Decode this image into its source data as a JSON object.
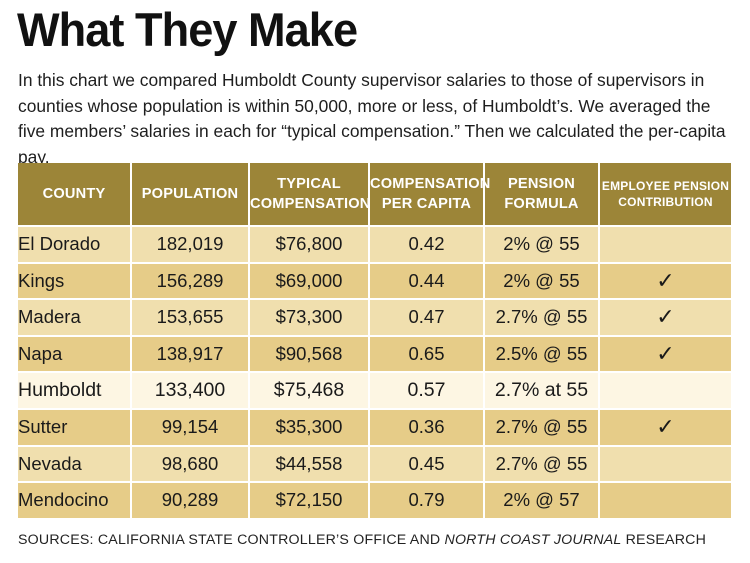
{
  "title": "What They Make",
  "intro": "In this chart we compared Humboldt County supervisor salaries to those of supervisors in counties whose population is within 50,000, more or less, of Humboldt’s. We averaged the five members’ salaries in each for “typical compensation.” Then we calculated the per-capita pay.",
  "colors": {
    "header_bg": "#9c8538",
    "row_light": "#f0dfae",
    "row_dark": "#e6cc88",
    "row_highlight": "#fdf6e3"
  },
  "chart_data": {
    "type": "table",
    "columns": [
      "County",
      "Population",
      "Typical Compensation",
      "Compensation Per Capita",
      "Pension Formula",
      "Employee Pension Contribution"
    ],
    "rows": [
      {
        "county": "El Dorado",
        "population": "182,019",
        "compensation": "$76,800",
        "per_capita": "0.42",
        "pension": "2% @ 55",
        "contribution": ""
      },
      {
        "county": "Kings",
        "population": "156,289",
        "compensation": "$69,000",
        "per_capita": "0.44",
        "pension": "2% @ 55",
        "contribution": "✓"
      },
      {
        "county": "Madera",
        "population": "153,655",
        "compensation": "$73,300",
        "per_capita": "0.47",
        "pension": "2.7% @ 55",
        "contribution": "✓"
      },
      {
        "county": "Napa",
        "population": "138,917",
        "compensation": "$90,568",
        "per_capita": "0.65",
        "pension": "2.5% @ 55",
        "contribution": "✓"
      },
      {
        "county": "Humboldt",
        "population": "133,400",
        "compensation": "$75,468",
        "per_capita": "0.57",
        "pension": "2.7% at 55",
        "contribution": ""
      },
      {
        "county": "Sutter",
        "population": "99,154",
        "compensation": "$35,300",
        "per_capita": "0.36",
        "pension": "2.7% @ 55",
        "contribution": "✓"
      },
      {
        "county": "Nevada",
        "population": "98,680",
        "compensation": "$44,558",
        "per_capita": "0.45",
        "pension": "2.7% @ 55",
        "contribution": ""
      },
      {
        "county": "Mendocino",
        "population": "90,289",
        "compensation": "$72,150",
        "per_capita": "0.79",
        "pension": "2% @ 57",
        "contribution": ""
      }
    ],
    "highlight_row": "Humboldt"
  },
  "sources": {
    "prefix": "Sources: California State Controller’s Office and ",
    "publication": "North Coast Journal",
    "suffix": " Research"
  }
}
